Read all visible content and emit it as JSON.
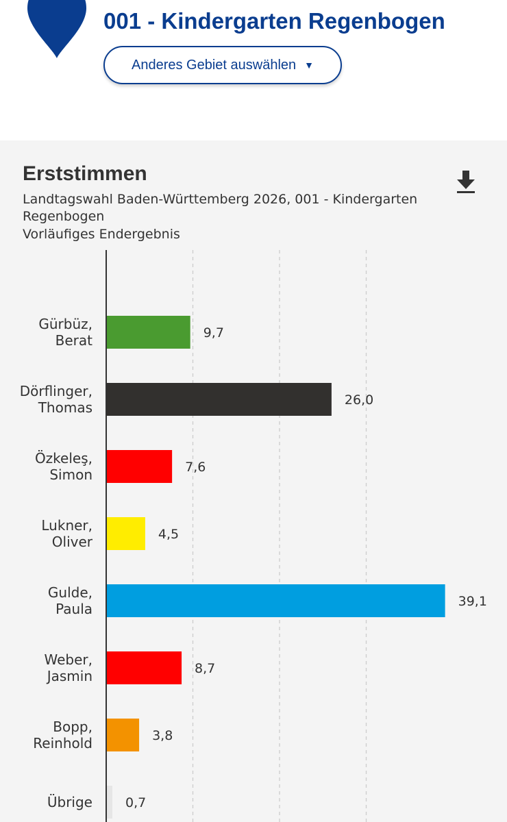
{
  "header": {
    "area_title": "001 - Kindergarten Regenbogen",
    "select_label": "Anderes Gebiet auswählen",
    "select_caret": "▼",
    "pin_icon": "map-pin-icon",
    "brand_color": "#0a3d8f"
  },
  "chart": {
    "title": "Erststimmen",
    "subtitle": "Landtagswahl Baden-Württemberg 2026, 001 - Kindergarten Regenbogen",
    "status": "Vorläufiges Endergebnis",
    "download_icon": "download-icon"
  },
  "chart_data": {
    "type": "bar",
    "orientation": "horizontal",
    "title": "Erststimmen",
    "xlim": [
      0,
      40
    ],
    "grid": true,
    "series": [
      {
        "name": "Erststimmen %",
        "values": [
          9.7,
          26.0,
          7.6,
          4.5,
          39.1,
          8.7,
          3.8,
          0.7
        ]
      }
    ],
    "categories": [
      {
        "lines": [
          "Gürbüz,",
          "Berat"
        ],
        "value": 9.7,
        "label": "9,7",
        "color": "#4a9b30"
      },
      {
        "lines": [
          "Dörflinger,",
          "Thomas"
        ],
        "value": 26.0,
        "label": "26,0",
        "color": "#32302e"
      },
      {
        "lines": [
          "Özkeleş,",
          "Simon"
        ],
        "value": 7.6,
        "label": "7,6",
        "color": "#ff0000"
      },
      {
        "lines": [
          "Lukner,",
          "Oliver"
        ],
        "value": 4.5,
        "label": "4,5",
        "color": "#ffed00"
      },
      {
        "lines": [
          "Gulde,",
          "Paula"
        ],
        "value": 39.1,
        "label": "39,1",
        "color": "#009ee0"
      },
      {
        "lines": [
          "Weber,",
          "Jasmin"
        ],
        "value": 8.7,
        "label": "8,7",
        "color": "#ff0000"
      },
      {
        "lines": [
          "Bopp,",
          "Reinhold"
        ],
        "value": 3.8,
        "label": "3,8",
        "color": "#f39200"
      },
      {
        "lines": [
          "Übrige"
        ],
        "value": 0.7,
        "label": "0,7",
        "color": "#e6e6e6"
      }
    ]
  }
}
